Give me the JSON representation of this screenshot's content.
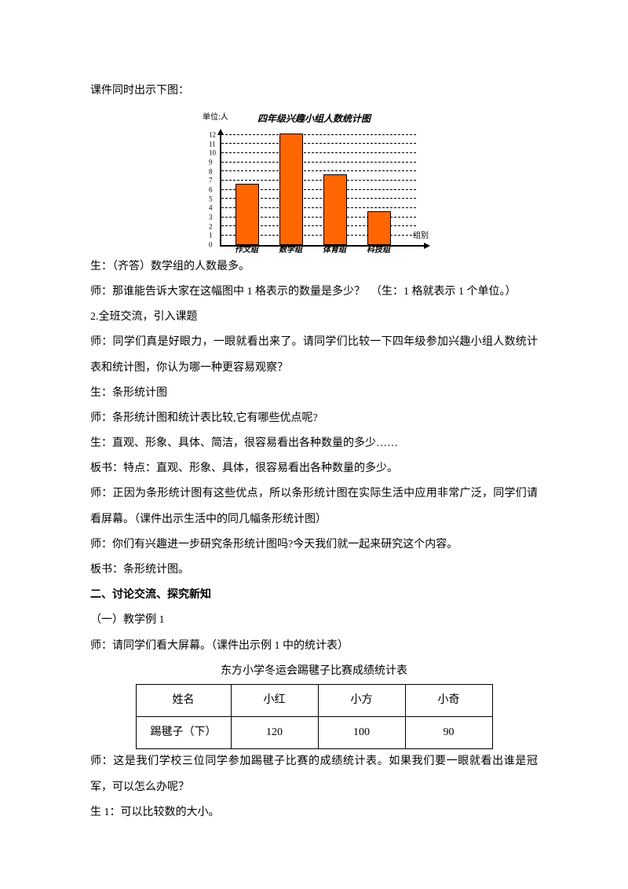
{
  "intro": "课件同时出示下图：",
  "chart": {
    "unit_label": "单位:人",
    "title": "四年级兴趣小组人数统计图",
    "x_axis_label": "组别",
    "bar_color": "#ff6600",
    "grid_color": "#000000",
    "ymax": 12,
    "yticks": [
      0,
      1,
      2,
      3,
      4,
      5,
      6,
      7,
      8,
      9,
      10,
      11,
      12
    ],
    "categories": [
      "作文组",
      "数学组",
      "体育组",
      "科技组"
    ],
    "values": [
      6.5,
      12,
      7.5,
      3.5
    ]
  },
  "dialogue": [
    "生：（齐答）数学组的人数最多。",
    "师：那谁能告诉大家在这幅图中 1 格表示的数量是多少？　（生：1 格就表示 1 个单位。）",
    "2.全班交流，引入课题",
    "师：同学们真是好眼力，一眼就看出来了。请同学们比较一下四年级参加兴趣小组人数统计表和统计图，你认为哪一种更容易观察？",
    "生：条形统计图",
    "师：条形统计图和统计表比较,它有哪些优点呢?",
    "生：直观、形象、具体、简洁，很容易看出各种数量的多少……",
    "板书：特点：直观、形象、具体，很容易看出各种数量的多少。",
    "师：正因为条形统计图有这些优点，所以条形统计图在实际生活中应用非常广泛，同学们请看屏幕。（课件出示生活中的同几幅条形统计图）",
    "师：你们有兴趣进一步研究条形统计图吗?今天我们就一起来研究这个内容。",
    "板书：条形统计图。"
  ],
  "section2_heading": "二、讨论交流、探究新知",
  "section2": [
    "（一）教学例 1",
    "师：请同学们看大屏幕。（课件出示例 1 中的统计表）"
  ],
  "table": {
    "title": "东方小学冬运会踢毽子比赛成绩统计表",
    "row_header": "姓名",
    "row_header2": "踢毽子（下）",
    "columns": [
      "小红",
      "小方",
      "小奇"
    ],
    "values": [
      120,
      100,
      90
    ]
  },
  "after_table": [
    "师：这是我们学校三位同学参加踢毽子比赛的成绩统计表。如果我们要一眼就看出谁是冠军，可以怎么办呢？",
    "生 1：可以比较数的大小。"
  ]
}
